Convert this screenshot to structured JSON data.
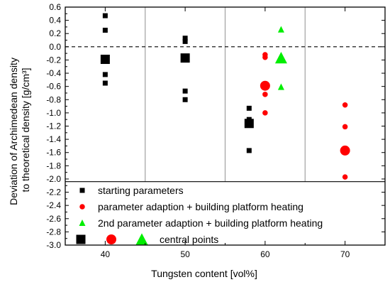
{
  "chart_data": {
    "type": "scatter",
    "xlabel": "Tungsten content [vol%]",
    "ylabel_lines": [
      "Deviation of Archimedean density",
      "to theoretical density [g/cm³]"
    ],
    "xlim": [
      35,
      75
    ],
    "ylim": [
      -3.0,
      0.6
    ],
    "x_ticks": [
      40,
      50,
      60,
      70
    ],
    "y_ticks": [
      0.6,
      0.4,
      0.2,
      0.0,
      -0.2,
      -0.4,
      -0.6,
      -0.8,
      -1.0,
      -1.2,
      -1.4,
      -1.6,
      -1.8,
      -2.0,
      -2.2,
      -2.4,
      -2.6,
      -2.8,
      -3.0
    ],
    "y_tick_labels": [
      "0.6",
      "0.4",
      "0.2",
      "0.0",
      "-0.2",
      "-0.4",
      "-0.6",
      "-0.8",
      "-1.0",
      "-1.2",
      "-1.4",
      "-1.6",
      "-1.8",
      "-2.0",
      "-2.2",
      "-2.4",
      "-2.6",
      "-2.8",
      "-3.0"
    ],
    "x_tick_labels": [
      "40",
      "50",
      "60",
      "70"
    ],
    "vertical_separators": [
      45,
      55,
      65
    ],
    "reference_line_y": 0.0,
    "legend_divider_y": -2.04,
    "series": [
      {
        "name": "starting parameters",
        "marker": "square",
        "color": "#000000",
        "points": [
          {
            "x": 40,
            "y": 0.47
          },
          {
            "x": 40,
            "y": 0.25
          },
          {
            "x": 40,
            "y": -0.42
          },
          {
            "x": 40,
            "y": -0.55
          },
          {
            "x": 50,
            "y": 0.13
          },
          {
            "x": 50,
            "y": 0.08
          },
          {
            "x": 50,
            "y": -0.67
          },
          {
            "x": 50,
            "y": -0.8
          },
          {
            "x": 58,
            "y": -0.93
          },
          {
            "x": 58,
            "y": -1.1
          },
          {
            "x": 58,
            "y": -1.57
          }
        ]
      },
      {
        "name": "parameter adaption + building platform heating",
        "marker": "circle",
        "color": "#ff0000",
        "points": [
          {
            "x": 60,
            "y": -0.12
          },
          {
            "x": 60,
            "y": -0.16
          },
          {
            "x": 60,
            "y": -0.72
          },
          {
            "x": 60,
            "y": -1.0
          },
          {
            "x": 70,
            "y": -0.88
          },
          {
            "x": 70,
            "y": -1.21
          },
          {
            "x": 70,
            "y": -1.97
          }
        ]
      },
      {
        "name": "2nd parameter adaption + building platform heating",
        "marker": "triangle",
        "color": "#00ee00",
        "points": [
          {
            "x": 62,
            "y": 0.26
          },
          {
            "x": 62,
            "y": -0.61
          }
        ]
      }
    ],
    "central_points": {
      "name": "central points",
      "points": [
        {
          "marker": "square",
          "color": "#000000",
          "x": 40,
          "y": -0.19
        },
        {
          "marker": "square",
          "color": "#000000",
          "x": 50,
          "y": -0.17
        },
        {
          "marker": "square",
          "color": "#000000",
          "x": 58,
          "y": -1.16
        },
        {
          "marker": "circle",
          "color": "#ff0000",
          "x": 60,
          "y": -0.59
        },
        {
          "marker": "circle",
          "color": "#ff0000",
          "x": 70,
          "y": -1.57
        },
        {
          "marker": "triangle",
          "color": "#00ee00",
          "x": 62,
          "y": -0.17
        }
      ]
    },
    "legend": {
      "placement": "bottom, inside plot",
      "entries": [
        {
          "text": "starting parameters",
          "markers": [
            {
              "shape": "square",
              "color": "#000000"
            }
          ]
        },
        {
          "text": "parameter adaption + building platform heating",
          "markers": [
            {
              "shape": "circle",
              "color": "#ff0000"
            }
          ]
        },
        {
          "text": "2nd parameter adaption + building platform heating",
          "markers": [
            {
              "shape": "triangle",
              "color": "#00ee00"
            }
          ]
        },
        {
          "text": "central points",
          "markers": [
            {
              "shape": "square",
              "color": "#000000"
            },
            {
              "shape": "circle",
              "color": "#ff0000"
            },
            {
              "shape": "triangle",
              "color": "#00ee00"
            }
          ]
        }
      ]
    }
  }
}
